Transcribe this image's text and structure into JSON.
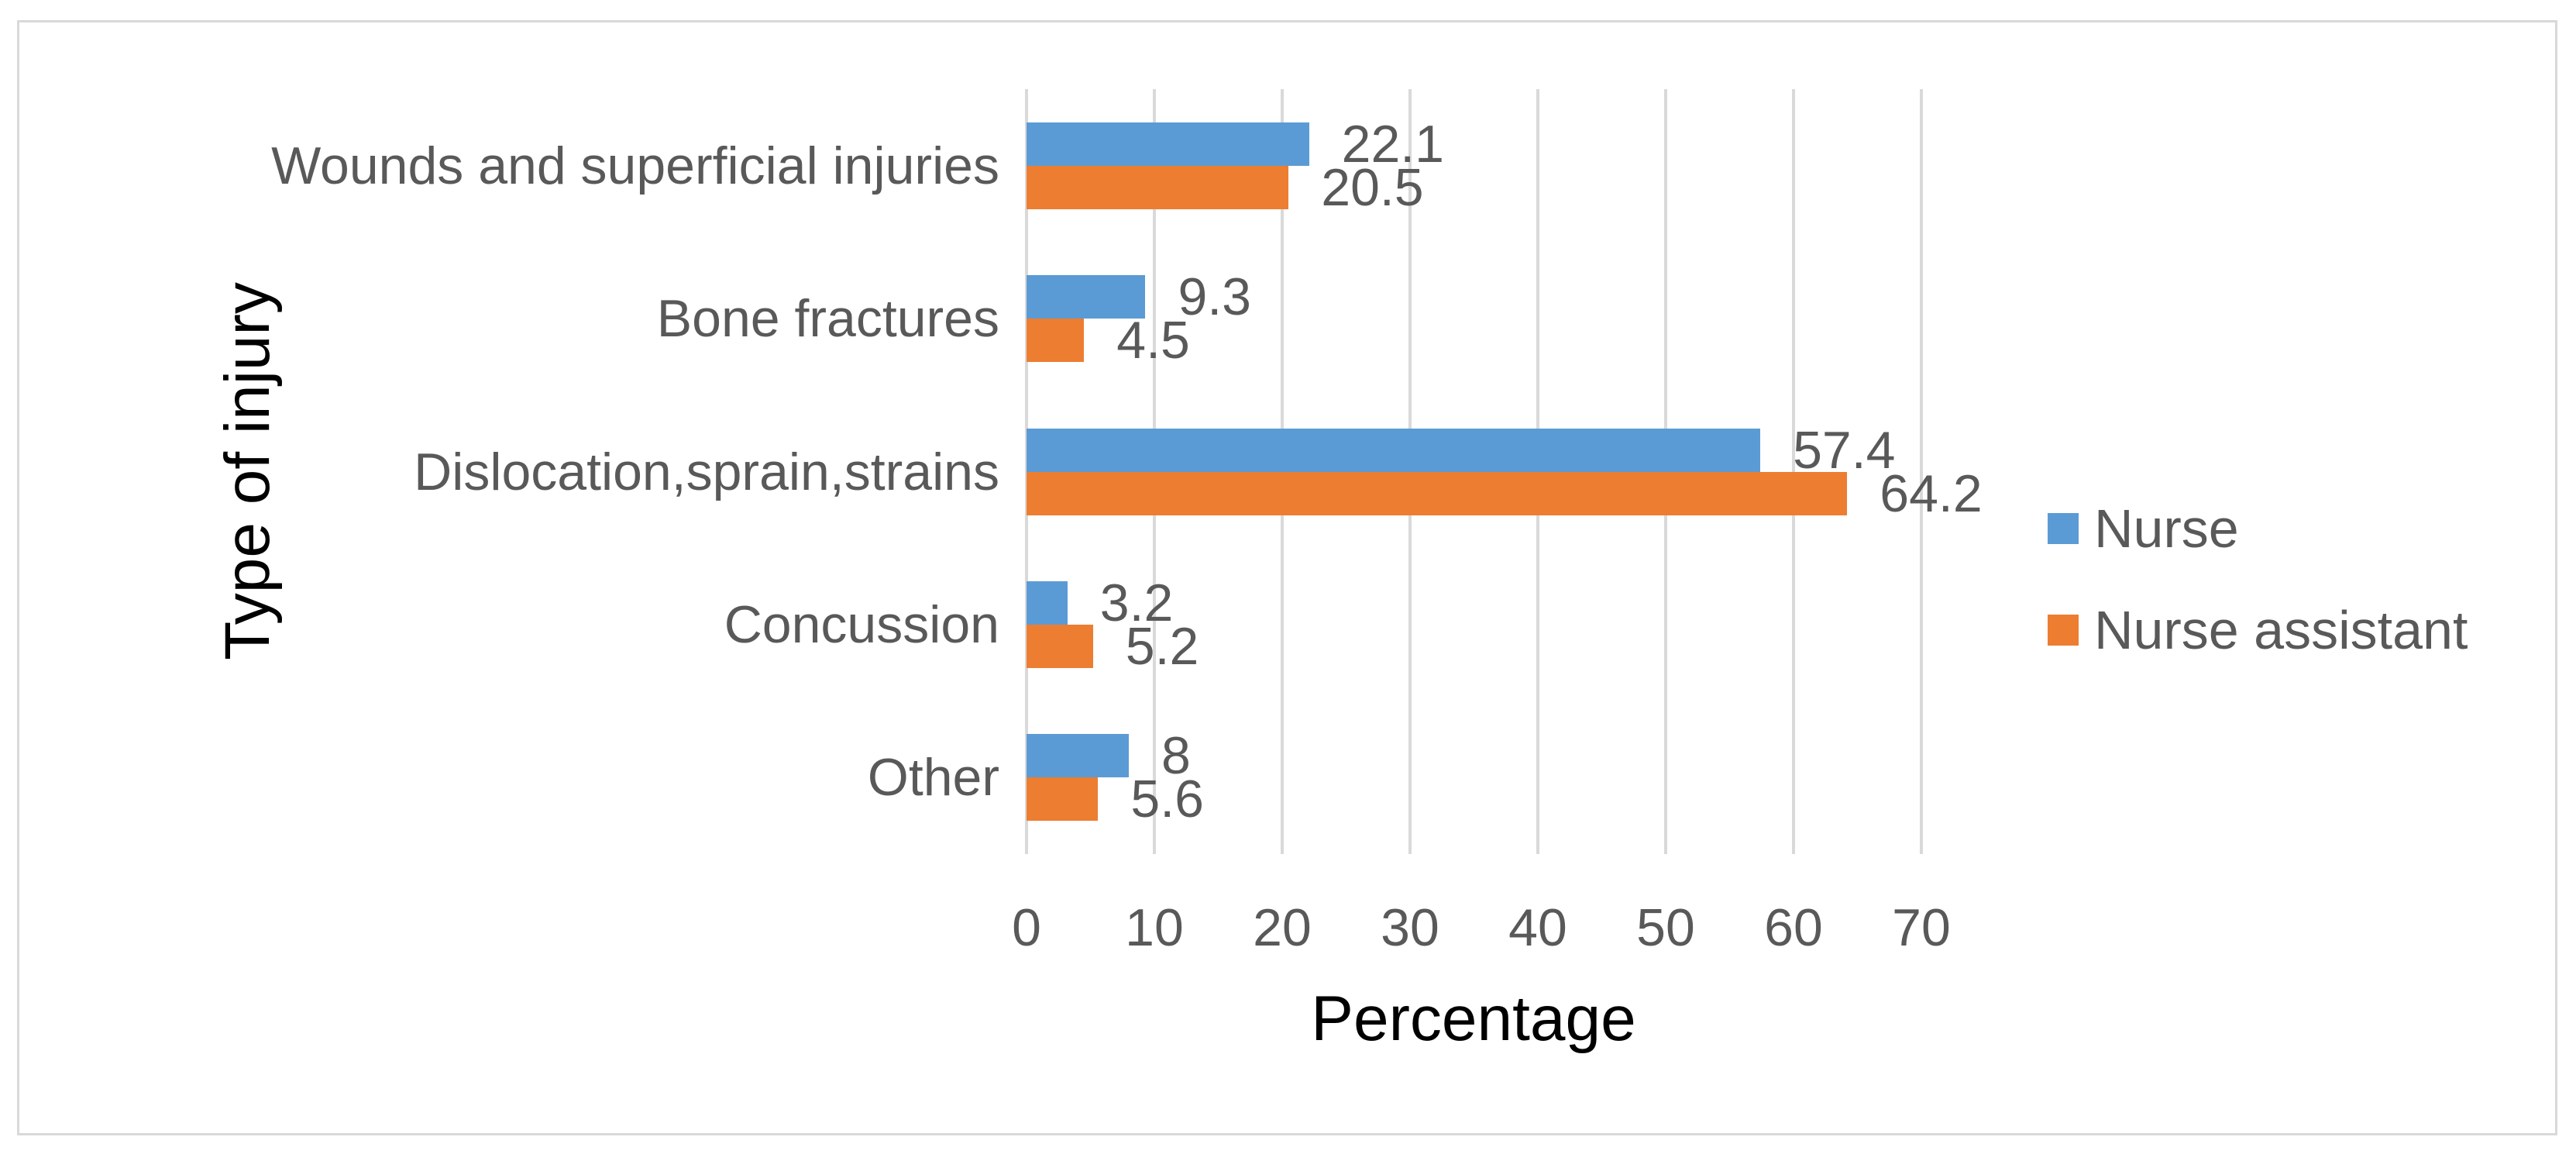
{
  "figure": {
    "background": "#FFFFFF",
    "border_color": "#D9D9D9"
  },
  "chart_data": {
    "type": "bar",
    "orientation": "horizontal",
    "title": "",
    "xlabel": "Percentage",
    "ylabel": "Type of injury",
    "categories": [
      "Wounds and superficial injuries",
      "Bone fractures",
      "Dislocation,sprain,strains",
      "Concussion",
      "Other"
    ],
    "series": [
      {
        "name": "Nurse",
        "color": "#5B9BD5",
        "values": [
          22.1,
          9.3,
          57.4,
          3.2,
          8
        ]
      },
      {
        "name": "Nurse assistant",
        "color": "#ED7D31",
        "values": [
          20.5,
          4.5,
          64.2,
          5.2,
          5.6
        ]
      }
    ],
    "data_labels": {
      "Nurse": [
        "22.1",
        "9.3",
        "57.4",
        "3.2",
        "8"
      ],
      "Nurse assistant": [
        "20.5",
        "4.5",
        "64.2",
        "5.2",
        "5.6"
      ]
    },
    "xlim": [
      0,
      70
    ],
    "xticks": [
      0,
      10,
      20,
      30,
      40,
      50,
      60,
      70
    ],
    "grid": true,
    "gridline_color": "#D9D9D9",
    "text_color": "#595959",
    "legend_position": "right",
    "legend_entries": [
      "Nurse",
      "Nurse assistant"
    ]
  }
}
